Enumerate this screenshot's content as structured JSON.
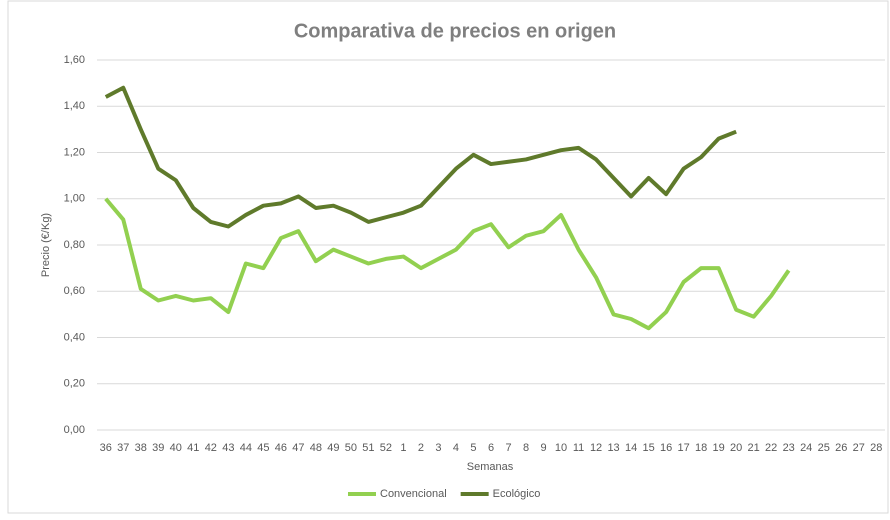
{
  "chart_data": {
    "type": "line",
    "title": "Comparativa de precios en origen",
    "x_label": "Semanas",
    "y_label": "Precio (€/Kg)",
    "categories": [
      "36",
      "37",
      "38",
      "39",
      "40",
      "41",
      "42",
      "43",
      "44",
      "45",
      "46",
      "47",
      "48",
      "49",
      "50",
      "51",
      "52",
      "1",
      "2",
      "3",
      "4",
      "5",
      "6",
      "7",
      "8",
      "9",
      "10",
      "11",
      "12",
      "13",
      "14",
      "15",
      "16",
      "17",
      "18",
      "19",
      "20",
      "21",
      "22",
      "23",
      "24",
      "25",
      "26",
      "27",
      "28"
    ],
    "series": [
      {
        "name": "Convencional",
        "color": "#92d050",
        "values": [
          1.0,
          0.91,
          0.61,
          0.56,
          0.58,
          0.56,
          0.57,
          0.51,
          0.72,
          0.7,
          0.83,
          0.86,
          0.73,
          0.78,
          0.75,
          0.72,
          0.74,
          0.75,
          0.7,
          0.74,
          0.78,
          0.86,
          0.89,
          0.79,
          0.84,
          0.86,
          0.93,
          0.78,
          0.66,
          0.5,
          0.48,
          0.44,
          0.51,
          0.64,
          0.7,
          0.7,
          0.52,
          0.49,
          0.58,
          0.69,
          null,
          null,
          null,
          null,
          null
        ]
      },
      {
        "name": "Ecológico",
        "color": "#5f7a2b",
        "values": [
          1.44,
          1.48,
          1.3,
          1.13,
          1.08,
          0.96,
          0.9,
          0.88,
          0.93,
          0.97,
          0.98,
          1.01,
          0.96,
          0.97,
          0.94,
          0.9,
          0.92,
          0.94,
          0.97,
          1.05,
          1.13,
          1.19,
          1.15,
          1.16,
          1.17,
          1.19,
          1.21,
          1.22,
          1.17,
          1.09,
          1.01,
          1.09,
          1.02,
          1.13,
          1.18,
          1.26,
          1.29,
          null,
          null,
          null,
          null,
          null,
          null,
          null,
          null
        ]
      }
    ],
    "ylim": [
      0,
      1.6
    ],
    "yticks": [
      {
        "value": 0,
        "label": "0,00"
      },
      {
        "value": 0.2,
        "label": "0,20"
      },
      {
        "value": 0.4,
        "label": "0,40"
      },
      {
        "value": 0.6,
        "label": "0,60"
      },
      {
        "value": 0.8,
        "label": "0,80"
      },
      {
        "value": 1.0,
        "label": "1,00"
      },
      {
        "value": 1.2,
        "label": "1,20"
      },
      {
        "value": 1.4,
        "label": "1,40"
      },
      {
        "value": 1.6,
        "label": "1,60"
      }
    ],
    "grid": true,
    "legend": "bottom"
  }
}
